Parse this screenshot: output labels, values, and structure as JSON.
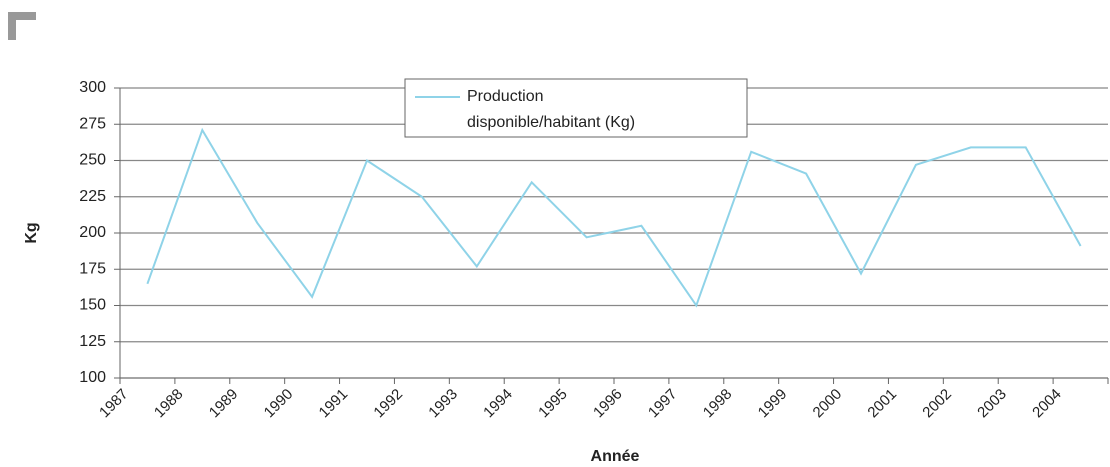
{
  "chart_data": {
    "type": "line",
    "y_label": "Kg",
    "x_label": "Année",
    "categories": [
      "1987",
      "1988",
      "1989",
      "1990",
      "1991",
      "1992",
      "1993",
      "1994",
      "1995",
      "1996",
      "1997",
      "1998",
      "1999",
      "2000",
      "2001",
      "2002",
      "2003",
      "2004"
    ],
    "series": [
      {
        "name": "Production disponible/habitant (Kg)",
        "color": "#8fd3e8",
        "values": [
          165,
          271,
          207,
          156,
          250,
          225,
          177,
          235,
          197,
          205,
          150,
          256,
          241,
          172,
          247,
          259,
          259,
          191
        ]
      }
    ],
    "ylim": [
      100,
      300
    ],
    "yticks": [
      100,
      125,
      150,
      175,
      200,
      225,
      250,
      275,
      300
    ],
    "grid": true,
    "legend": "top"
  }
}
